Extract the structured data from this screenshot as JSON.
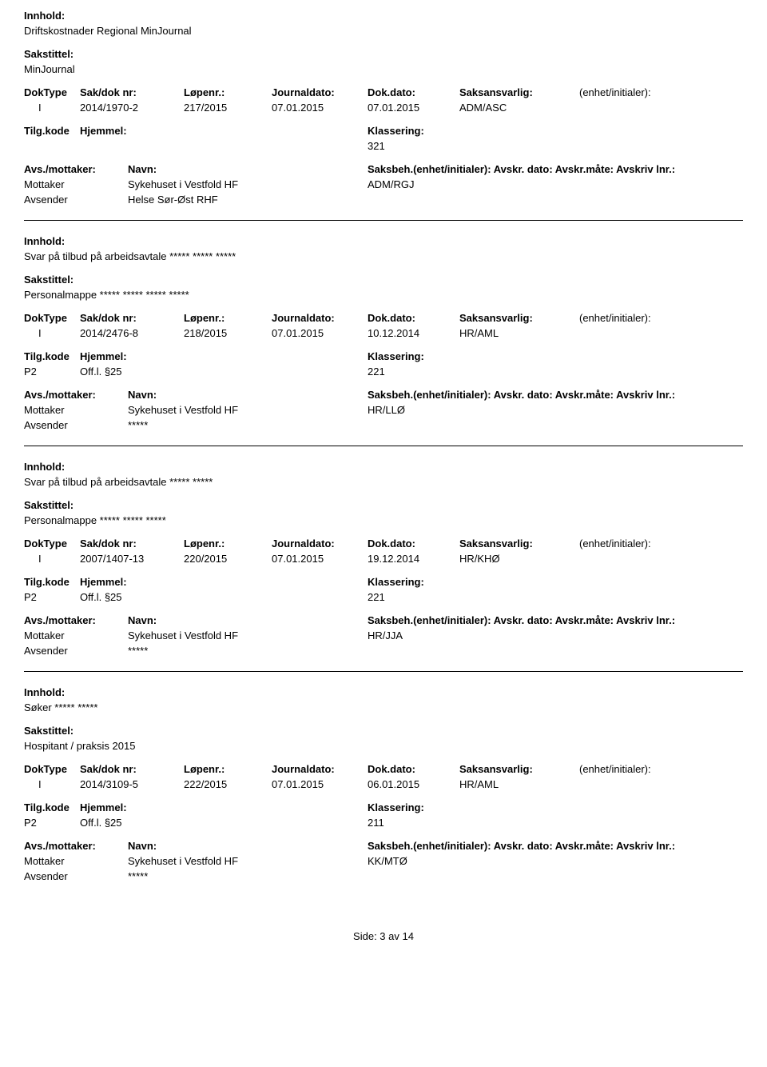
{
  "labels": {
    "innhold": "Innhold:",
    "sakstittel": "Sakstittel:",
    "doktype": "DokType",
    "sakdok": "Sak/dok nr:",
    "lopenr": "Løpenr.:",
    "journaldato": "Journaldato:",
    "dokdato": "Dok.dato:",
    "saksansvarlig": "Saksansvarlig:",
    "enhet": "(enhet/initialer):",
    "tilgkode": "Tilg.kode",
    "hjemmel": "Hjemmel:",
    "klassering": "Klassering:",
    "avsmottaker": "Avs./mottaker:",
    "navn": "Navn:",
    "saksbeh_line": "Saksbeh.(enhet/initialer): Avskr. dato: Avskr.måte: Avskriv lnr.:",
    "mottaker": "Mottaker",
    "avsender": "Avsender"
  },
  "entries": [
    {
      "innhold": "Driftskostnader Regional MinJournal",
      "sakstittel": "MinJournal",
      "doktype": "I",
      "sakdok": "2014/1970-2",
      "lopenr": "217/2015",
      "journaldato": "07.01.2015",
      "dokdato": "07.01.2015",
      "saksansvarlig": "ADM/ASC",
      "tilgkode": "",
      "hjemmel": "",
      "klassering": "321",
      "mottaker_navn": "Sykehuset i Vestfold HF",
      "mottaker_unit": "ADM/RGJ",
      "avsender_navn": "Helse Sør-Øst RHF"
    },
    {
      "innhold": "Svar på tilbud på arbeidsavtale  ***** ***** *****",
      "sakstittel": "Personalmappe ***** ***** ***** *****",
      "doktype": "I",
      "sakdok": "2014/2476-8",
      "lopenr": "218/2015",
      "journaldato": "07.01.2015",
      "dokdato": "10.12.2014",
      "saksansvarlig": "HR/AML",
      "tilgkode": "P2",
      "hjemmel": "Off.l. §25",
      "klassering": "221",
      "mottaker_navn": "Sykehuset i Vestfold HF",
      "mottaker_unit": "HR/LLØ",
      "avsender_navn": "*****"
    },
    {
      "innhold": "Svar på tilbud på arbeidsavtale ***** *****",
      "sakstittel": "Personalmappe ***** ***** *****",
      "doktype": "I",
      "sakdok": "2007/1407-13",
      "lopenr": "220/2015",
      "journaldato": "07.01.2015",
      "dokdato": "19.12.2014",
      "saksansvarlig": "HR/KHØ",
      "tilgkode": "P2",
      "hjemmel": "Off.l. §25",
      "klassering": "221",
      "mottaker_navn": "Sykehuset i Vestfold HF",
      "mottaker_unit": "HR/JJA",
      "avsender_navn": "*****"
    },
    {
      "innhold": "Søker ***** *****",
      "sakstittel": "Hospitant / praksis 2015",
      "doktype": "I",
      "sakdok": "2014/3109-5",
      "lopenr": "222/2015",
      "journaldato": "07.01.2015",
      "dokdato": "06.01.2015",
      "saksansvarlig": "HR/AML",
      "tilgkode": "P2",
      "hjemmel": "Off.l. §25",
      "klassering": "211",
      "mottaker_navn": "Sykehuset i Vestfold HF",
      "mottaker_unit": "KK/MTØ",
      "avsender_navn": "*****"
    }
  ],
  "footer": "Side: 3 av 14"
}
